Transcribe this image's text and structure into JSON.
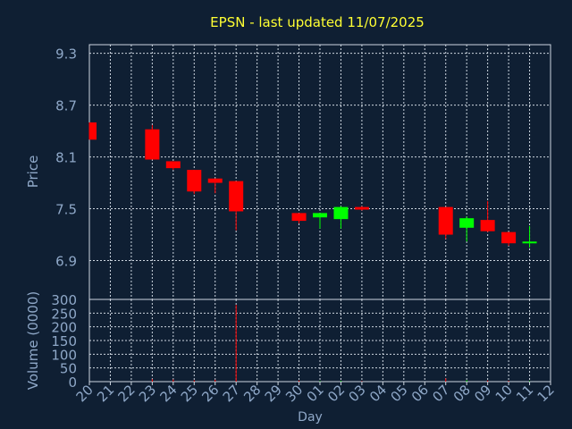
{
  "chart_data": {
    "type": "candlestick",
    "title": "EPSN - last updated 11/07/2025",
    "xlabel": "Day",
    "price_panel": {
      "ylabel": "Price",
      "yticks": [
        "9.3",
        "8.7",
        "8.1",
        "7.5",
        "6.9"
      ],
      "ylim": [
        6.45,
        9.4
      ]
    },
    "volume_panel": {
      "ylabel": "Volume (0000)",
      "yticks": [
        "300",
        "250",
        "200",
        "150",
        "100",
        "50",
        "0"
      ],
      "ylim": [
        0,
        300
      ]
    },
    "x_tick_labels": [
      "20",
      "21",
      "22",
      "23",
      "24",
      "25",
      "26",
      "27",
      "28",
      "29",
      "30",
      "01",
      "02",
      "03",
      "04",
      "05",
      "06",
      "07",
      "08",
      "09",
      "10",
      "11",
      "12"
    ],
    "candles": [
      {
        "day": "20",
        "open": 8.5,
        "high": 8.5,
        "low": 8.3,
        "close": 8.3,
        "volume": 0
      },
      {
        "day": "23",
        "open": 8.42,
        "high": 8.47,
        "low": 8.07,
        "close": 8.07,
        "volume": 9
      },
      {
        "day": "24",
        "open": 8.05,
        "high": 8.05,
        "low": 7.95,
        "close": 7.97,
        "volume": 8
      },
      {
        "day": "25",
        "open": 7.95,
        "high": 7.95,
        "low": 7.67,
        "close": 7.7,
        "volume": 5
      },
      {
        "day": "26",
        "open": 7.85,
        "high": 7.85,
        "low": 7.68,
        "close": 7.8,
        "volume": 7
      },
      {
        "day": "27",
        "open": 7.82,
        "high": 7.82,
        "low": 7.25,
        "close": 7.47,
        "volume": 280
      },
      {
        "day": "30",
        "open": 7.45,
        "high": 7.45,
        "low": 7.33,
        "close": 7.36,
        "volume": 4
      },
      {
        "day": "01",
        "open": 7.4,
        "high": 7.45,
        "low": 7.27,
        "close": 7.45,
        "volume": 2
      },
      {
        "day": "02",
        "open": 7.38,
        "high": 7.53,
        "low": 7.27,
        "close": 7.52,
        "volume": 3
      },
      {
        "day": "03",
        "open": 7.52,
        "high": 7.53,
        "low": 7.48,
        "close": 7.49,
        "volume": 2
      },
      {
        "day": "07",
        "open": 7.52,
        "high": 7.52,
        "low": 7.15,
        "close": 7.2,
        "volume": 12
      },
      {
        "day": "08",
        "open": 7.28,
        "high": 7.41,
        "low": 7.12,
        "close": 7.39,
        "volume": 5
      },
      {
        "day": "09",
        "open": 7.37,
        "high": 7.59,
        "low": 7.23,
        "close": 7.24,
        "volume": 4
      },
      {
        "day": "10",
        "open": 7.23,
        "high": 7.23,
        "low": 7.07,
        "close": 7.1,
        "volume": 3
      },
      {
        "day": "11",
        "open": 7.1,
        "high": 7.3,
        "low": 7.05,
        "close": 7.12,
        "volume": 2
      }
    ],
    "grid": true,
    "colors": {
      "background": "#0f1f33",
      "axis": "#cdd6e0",
      "grid": "#cdd6e0",
      "title": "#ffff33",
      "labels": "#8fa8c8",
      "up": "#00ff00",
      "down": "#ff0000"
    }
  }
}
